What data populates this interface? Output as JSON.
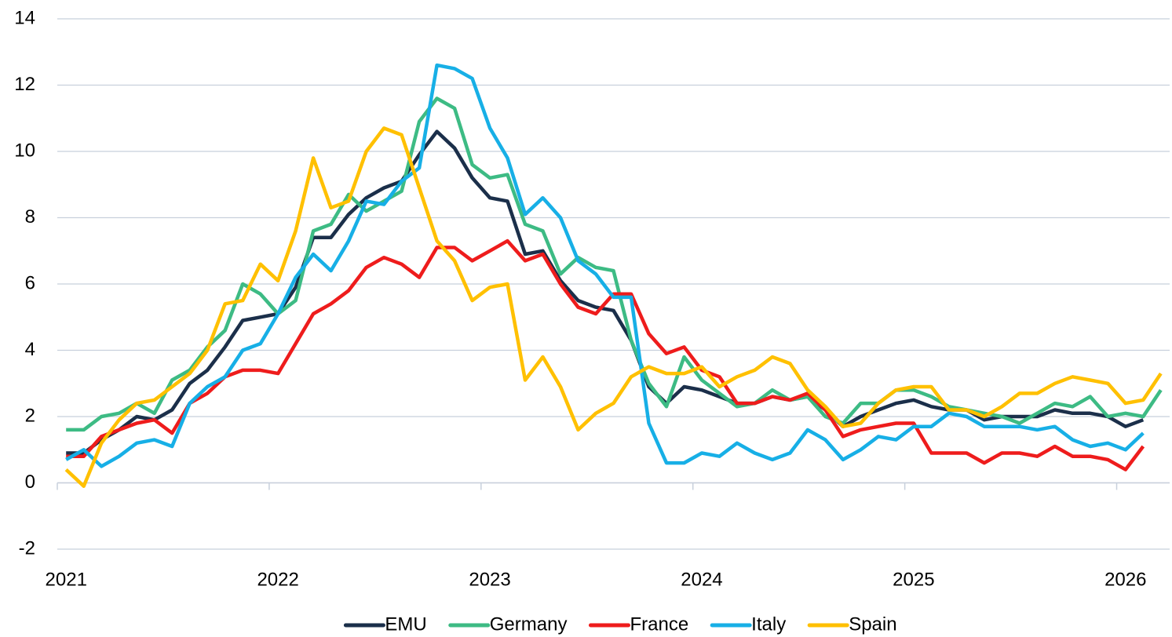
{
  "chart_data": {
    "type": "line",
    "categories": [
      "2021",
      null,
      null,
      null,
      null,
      null,
      null,
      null,
      null,
      null,
      null,
      null,
      "2022",
      null,
      null,
      null,
      null,
      null,
      null,
      null,
      null,
      null,
      null,
      null,
      "2023",
      null,
      null,
      null,
      null,
      null,
      null,
      null,
      null,
      null,
      null,
      null,
      "2024",
      null,
      null,
      null,
      null,
      null,
      null,
      null,
      null,
      null,
      null,
      null,
      "2025",
      null,
      null,
      null,
      null,
      null,
      null,
      null,
      null,
      null,
      null,
      null,
      "2026",
      null,
      null
    ],
    "ylim": [
      -2,
      14
    ],
    "yticks": [
      -2,
      0,
      2,
      4,
      6,
      8,
      10,
      12,
      14
    ],
    "grid": true,
    "legend": "bottom",
    "series": [
      {
        "name": "EMU",
        "color": "#1b2f4a",
        "values": [
          0.9,
          0.9,
          1.3,
          1.6,
          2.0,
          1.9,
          2.2,
          3.0,
          3.4,
          4.1,
          4.9,
          5.0,
          5.1,
          5.9,
          7.4,
          7.4,
          8.1,
          8.6,
          8.9,
          9.1,
          9.9,
          10.6,
          10.1,
          9.2,
          8.6,
          8.5,
          6.9,
          7.0,
          6.1,
          5.5,
          5.3,
          5.2,
          4.3,
          2.9,
          2.4,
          2.9,
          2.8,
          2.6,
          2.4,
          2.4,
          2.6,
          2.5,
          2.6,
          2.2,
          1.7,
          2.0,
          2.2,
          2.4,
          2.5,
          2.3,
          2.2,
          2.2,
          1.9,
          2.0,
          2.0,
          2.0,
          2.2,
          2.1,
          2.1,
          2.0,
          1.7,
          1.9,
          null
        ]
      },
      {
        "name": "Germany",
        "color": "#3dbb84",
        "values": [
          1.6,
          1.6,
          2.0,
          2.1,
          2.4,
          2.1,
          3.1,
          3.4,
          4.1,
          4.6,
          6.0,
          5.7,
          5.1,
          5.5,
          7.6,
          7.8,
          8.7,
          8.2,
          8.5,
          8.8,
          10.9,
          11.6,
          11.3,
          9.6,
          9.2,
          9.3,
          7.8,
          7.6,
          6.3,
          6.8,
          6.5,
          6.4,
          4.3,
          3.0,
          2.3,
          3.8,
          3.1,
          2.7,
          2.3,
          2.4,
          2.8,
          2.5,
          2.6,
          2.0,
          1.8,
          2.4,
          2.4,
          2.8,
          2.8,
          2.6,
          2.3,
          2.2,
          2.1,
          2.0,
          1.8,
          2.1,
          2.4,
          2.3,
          2.6,
          2.0,
          2.1,
          2.0,
          2.8
        ]
      },
      {
        "name": "France",
        "color": "#ee1c1c",
        "values": [
          0.8,
          0.8,
          1.4,
          1.6,
          1.8,
          1.9,
          1.5,
          2.4,
          2.7,
          3.2,
          3.4,
          3.4,
          3.3,
          4.2,
          5.1,
          5.4,
          5.8,
          6.5,
          6.8,
          6.6,
          6.2,
          7.1,
          7.1,
          6.7,
          7.0,
          7.3,
          6.7,
          6.9,
          6.0,
          5.3,
          5.1,
          5.7,
          5.7,
          4.5,
          3.9,
          4.1,
          3.4,
          3.2,
          2.4,
          2.4,
          2.6,
          2.5,
          2.7,
          2.2,
          1.4,
          1.6,
          1.7,
          1.8,
          1.8,
          0.9,
          0.9,
          0.9,
          0.6,
          0.9,
          0.9,
          0.8,
          1.1,
          0.8,
          0.8,
          0.7,
          0.4,
          1.1,
          null
        ]
      },
      {
        "name": "Italy",
        "color": "#17afe6",
        "values": [
          0.7,
          1.0,
          0.5,
          0.8,
          1.2,
          1.3,
          1.1,
          2.4,
          2.9,
          3.2,
          4.0,
          4.2,
          5.1,
          6.2,
          6.9,
          6.4,
          7.3,
          8.5,
          8.4,
          9.1,
          9.5,
          12.6,
          12.5,
          12.2,
          10.7,
          9.8,
          8.1,
          8.6,
          8.0,
          6.7,
          6.3,
          5.6,
          5.6,
          1.8,
          0.6,
          0.6,
          0.9,
          0.8,
          1.2,
          0.9,
          0.7,
          0.9,
          1.6,
          1.3,
          0.7,
          1.0,
          1.4,
          1.3,
          1.7,
          1.7,
          2.1,
          2.0,
          1.7,
          1.7,
          1.7,
          1.6,
          1.7,
          1.3,
          1.1,
          1.2,
          1.0,
          1.5,
          null
        ]
      },
      {
        "name": "Spain",
        "color": "#ffc000",
        "values": [
          0.4,
          -0.1,
          1.2,
          1.9,
          2.4,
          2.5,
          2.9,
          3.3,
          4.0,
          5.4,
          5.5,
          6.6,
          6.1,
          7.6,
          9.8,
          8.3,
          8.5,
          10.0,
          10.7,
          10.5,
          8.9,
          7.3,
          6.7,
          5.5,
          5.9,
          6.0,
          3.1,
          3.8,
          2.9,
          1.6,
          2.1,
          2.4,
          3.2,
          3.5,
          3.3,
          3.3,
          3.5,
          2.9,
          3.2,
          3.4,
          3.8,
          3.6,
          2.8,
          2.3,
          1.7,
          1.8,
          2.4,
          2.8,
          2.9,
          2.9,
          2.2,
          2.2,
          2.0,
          2.3,
          2.7,
          2.7,
          3.0,
          3.2,
          3.1,
          3.0,
          2.4,
          2.5,
          3.3
        ]
      }
    ]
  }
}
